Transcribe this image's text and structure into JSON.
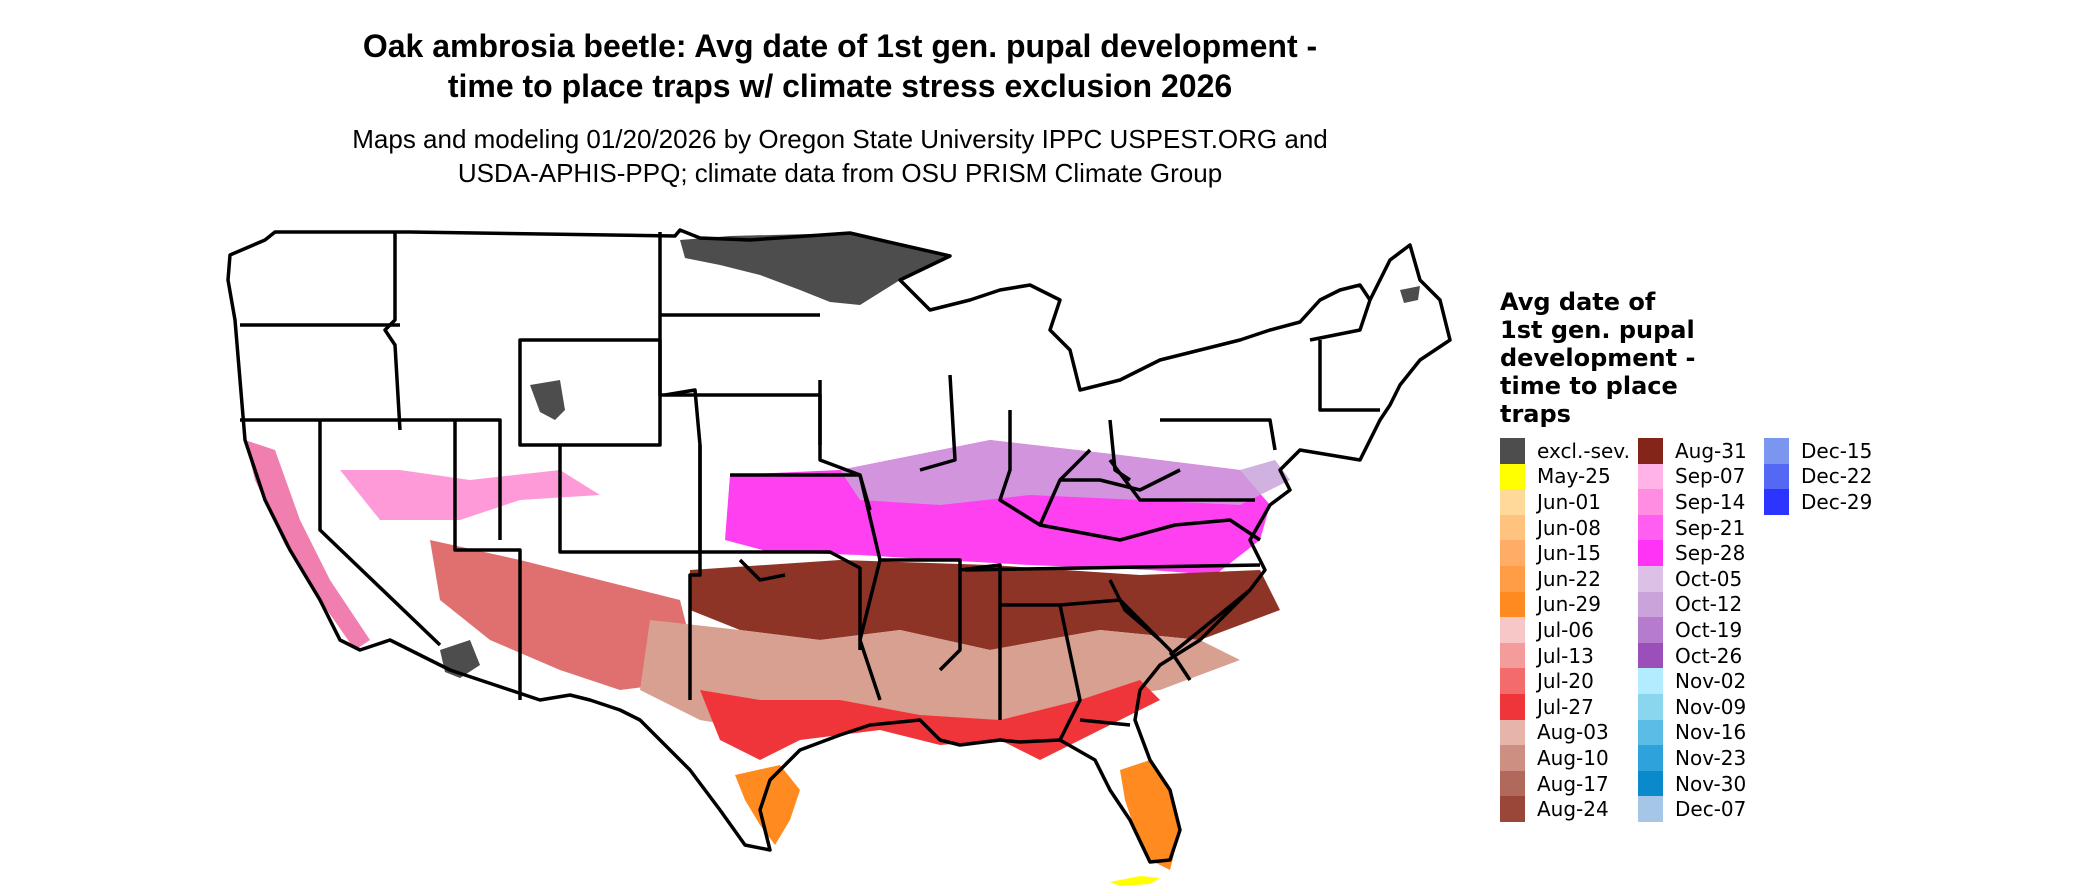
{
  "title_line1": "Oak ambrosia beetle: Avg date of 1st gen. pupal development -",
  "title_line2": "time to place traps w/ climate stress exclusion 2026",
  "subtitle_line1": "Maps and modeling 01/20/2026 by Oregon State University IPPC USPEST.ORG and",
  "subtitle_line2": "USDA-APHIS-PPQ; climate data from OSU PRISM Climate Group",
  "legend": {
    "title_lines": [
      "Avg date of",
      "1st gen. pupal",
      "development -",
      "time to place",
      "traps"
    ],
    "items": [
      {
        "label": "excl.-sev.",
        "color": "#4d4d4d"
      },
      {
        "label": "May-25",
        "color": "#ffff00"
      },
      {
        "label": "Jun-01",
        "color": "#ffd99a"
      },
      {
        "label": "Jun-08",
        "color": "#ffc27f"
      },
      {
        "label": "Jun-15",
        "color": "#ffad66"
      },
      {
        "label": "Jun-22",
        "color": "#ff9d46"
      },
      {
        "label": "Jun-29",
        "color": "#ff8a1f"
      },
      {
        "label": "Jul-06",
        "color": "#f7c7c7"
      },
      {
        "label": "Jul-13",
        "color": "#f49b9b"
      },
      {
        "label": "Jul-20",
        "color": "#f36b6b"
      },
      {
        "label": "Jul-27",
        "color": "#f0353a"
      },
      {
        "label": "Aug-03",
        "color": "#e6b4a8"
      },
      {
        "label": "Aug-10",
        "color": "#cc8f82"
      },
      {
        "label": "Aug-17",
        "color": "#b1695c"
      },
      {
        "label": "Aug-24",
        "color": "#9a473a"
      },
      {
        "label": "Aug-31",
        "color": "#84251a"
      },
      {
        "label": "Sep-07",
        "color": "#ffb3e6"
      },
      {
        "label": "Sep-14",
        "color": "#ff8ee3"
      },
      {
        "label": "Sep-21",
        "color": "#ff5ef0"
      },
      {
        "label": "Sep-28",
        "color": "#ff33f5"
      },
      {
        "label": "Oct-05",
        "color": "#dcc0e6"
      },
      {
        "label": "Oct-12",
        "color": "#c9a3d9"
      },
      {
        "label": "Oct-19",
        "color": "#b57bcc"
      },
      {
        "label": "Oct-26",
        "color": "#9b4fb8"
      },
      {
        "label": "Nov-02",
        "color": "#b3ecff"
      },
      {
        "label": "Nov-09",
        "color": "#8ad6ef"
      },
      {
        "label": "Nov-16",
        "color": "#5bbde6"
      },
      {
        "label": "Nov-23",
        "color": "#2ea2db"
      },
      {
        "label": "Nov-30",
        "color": "#0a8acb"
      },
      {
        "label": "Dec-07",
        "color": "#a6c6e8"
      },
      {
        "label": "Dec-15",
        "color": "#7a96ee"
      },
      {
        "label": "Dec-22",
        "color": "#5369f3"
      },
      {
        "label": "Dec-29",
        "color": "#2b35ff"
      }
    ]
  }
}
